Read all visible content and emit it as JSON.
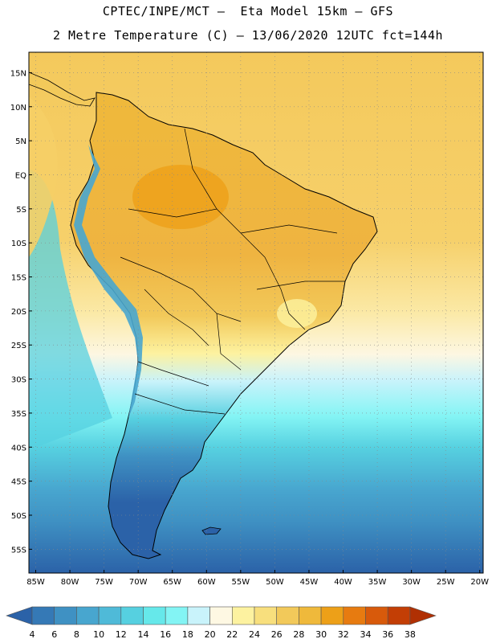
{
  "header": {
    "line1": "CPTEC/INPE/MCT –  Eta Model 15km – GFS",
    "line2": "2 Metre Temperature (C) – 13/06/2020 12UTC fct=144h"
  },
  "map": {
    "lat_labels": [
      "15N",
      "10N",
      "5N",
      "EQ",
      "5S",
      "10S",
      "15S",
      "20S",
      "25S",
      "30S",
      "35S",
      "40S",
      "45S",
      "50S",
      "55S"
    ],
    "lat_values": [
      15,
      10,
      5,
      0,
      -5,
      -10,
      -15,
      -20,
      -25,
      -30,
      -35,
      -40,
      -45,
      -50,
      -55
    ],
    "lon_labels": [
      "85W",
      "80W",
      "75W",
      "70W",
      "65W",
      "60W",
      "55W",
      "50W",
      "45W",
      "40W",
      "35W",
      "30W",
      "25W",
      "20W"
    ],
    "lon_values": [
      -85,
      -80,
      -75,
      -70,
      -65,
      -60,
      -55,
      -50,
      -45,
      -40,
      -35,
      -30,
      -25,
      -20
    ],
    "extent": {
      "lon_min": -86,
      "lon_max": -19.5,
      "lat_min": -58.5,
      "lat_max": 18
    }
  },
  "colorbar": {
    "labels": [
      "4",
      "6",
      "8",
      "10",
      "12",
      "14",
      "16",
      "18",
      "20",
      "22",
      "24",
      "26",
      "28",
      "30",
      "32",
      "34",
      "36",
      "38"
    ],
    "colors": [
      "#2b62a8",
      "#3579b6",
      "#3f91c3",
      "#48a6cf",
      "#4fbad8",
      "#56d0e0",
      "#66e8ea",
      "#83f4f4",
      "#c9f3fb",
      "#fef8e3",
      "#fdf2a0",
      "#f8df7d",
      "#f2c95a",
      "#efb93b",
      "#eda018",
      "#e77b10",
      "#d85a0b",
      "#c33e05",
      "#b03003"
    ]
  },
  "colors": {
    "ocean_south": "#2b62a8",
    "land_outline": "#000000",
    "grid": "#888888"
  }
}
